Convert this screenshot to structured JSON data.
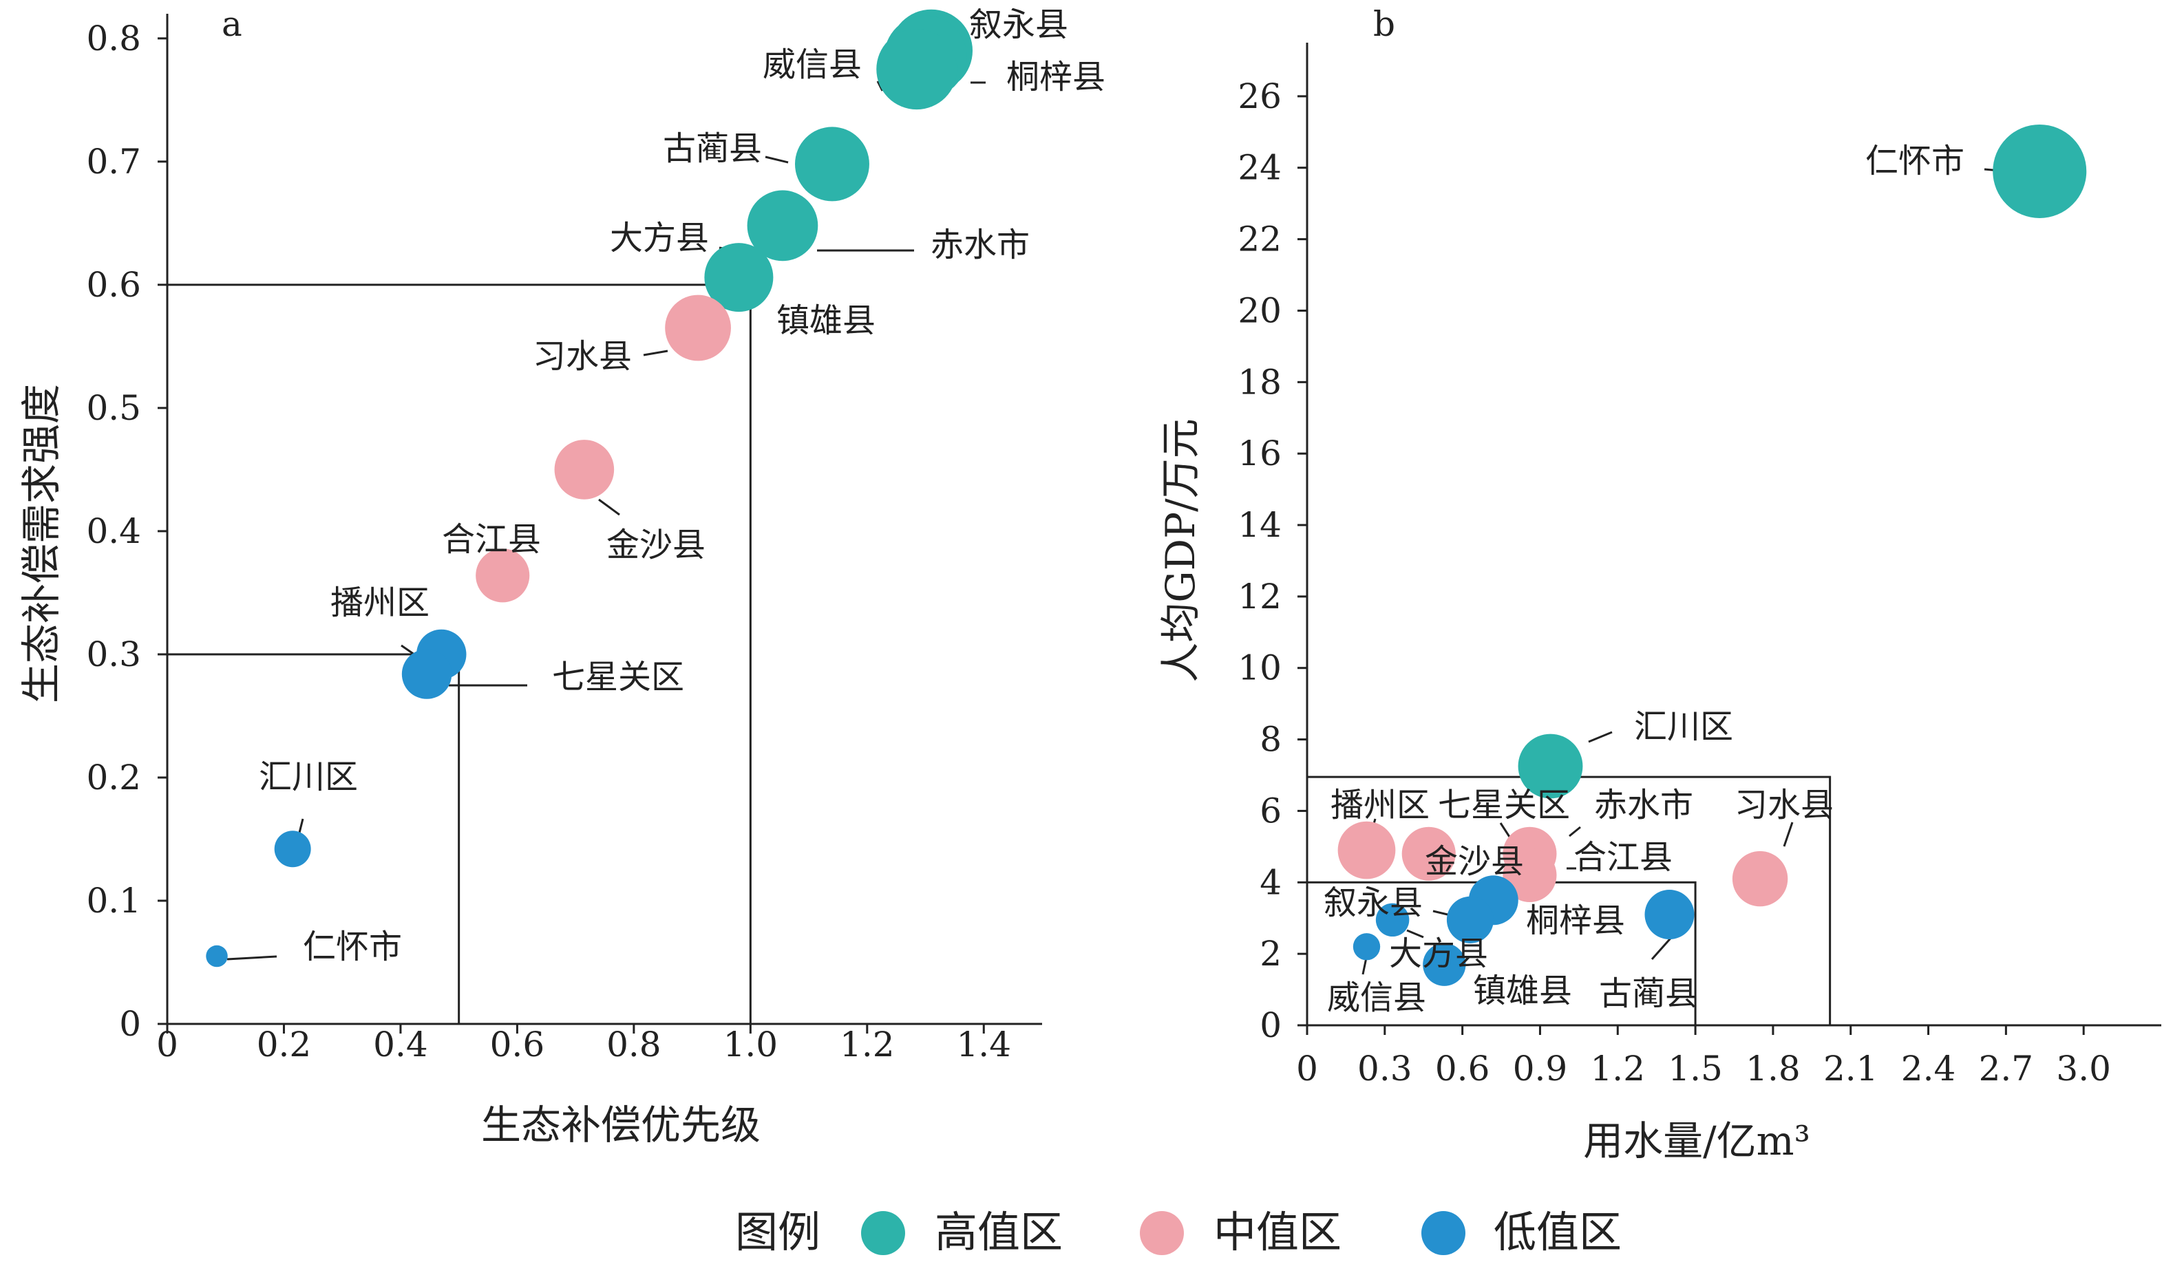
{
  "chart_data": [
    {
      "panel": "a",
      "type": "scatter",
      "xlabel": "生态补偿优先级",
      "ylabel": "生态补偿需求强度",
      "xlim": [
        0,
        1.5
      ],
      "ylim": [
        0,
        0.82
      ],
      "x_ticks": [
        "0",
        "0.2",
        "0.4",
        "0.6",
        "0.8",
        "1.0",
        "1.2",
        "1.4"
      ],
      "y_ticks": [
        "0",
        "0.1",
        "0.2",
        "0.3",
        "0.4",
        "0.5",
        "0.6",
        "0.7",
        "0.8"
      ],
      "boxes": [
        {
          "x": [
            0,
            0.5
          ],
          "y": [
            0,
            0.3
          ]
        },
        {
          "x": [
            0,
            1.0
          ],
          "y": [
            0,
            0.6
          ]
        }
      ],
      "points": [
        {
          "label": "叙永县",
          "x": 1.31,
          "y": 0.79,
          "group": "high",
          "size": 1.0
        },
        {
          "label": "桐梓县",
          "x": 1.3,
          "y": 0.785,
          "group": "high",
          "size": 1.0
        },
        {
          "label": "威信县",
          "x": 1.285,
          "y": 0.775,
          "group": "high",
          "size": 0.95
        },
        {
          "label": "古蔺县",
          "x": 1.14,
          "y": 0.698,
          "group": "high",
          "size": 0.8
        },
        {
          "label": "大方县",
          "x": 1.055,
          "y": 0.648,
          "group": "high",
          "size": 0.72
        },
        {
          "label": "赤水市",
          "x": 1.06,
          "y": 0.648,
          "group": "high",
          "size": 0.0
        },
        {
          "label": "镇雄县",
          "x": 0.98,
          "y": 0.606,
          "group": "high",
          "size": 0.68
        },
        {
          "label": "习水县",
          "x": 0.91,
          "y": 0.565,
          "group": "mid",
          "size": 0.62
        },
        {
          "label": "金沙县",
          "x": 0.715,
          "y": 0.45,
          "group": "mid",
          "size": 0.5
        },
        {
          "label": "合江县",
          "x": 0.575,
          "y": 0.364,
          "group": "mid",
          "size": 0.4
        },
        {
          "label": "播州区",
          "x": 0.47,
          "y": 0.3,
          "group": "low",
          "size": 0.34
        },
        {
          "label": "七星关区",
          "x": 0.445,
          "y": 0.284,
          "group": "low",
          "size": 0.34
        },
        {
          "label": "汇川区",
          "x": 0.215,
          "y": 0.142,
          "group": "low",
          "size": 0.17
        },
        {
          "label": "仁怀市",
          "x": 0.085,
          "y": 0.055,
          "group": "low",
          "size": 0.05
        }
      ]
    },
    {
      "panel": "b",
      "type": "scatter",
      "xlabel": "用水量/亿m³",
      "ylabel": "人均GDP/万元",
      "xlim": [
        0,
        3.3
      ],
      "ylim": [
        0,
        27.5
      ],
      "x_ticks": [
        "0",
        "0.3",
        "0.6",
        "0.9",
        "1.2",
        "1.5",
        "1.8",
        "2.1",
        "2.4",
        "2.7",
        "3.0"
      ],
      "y_ticks": [
        "0",
        "2",
        "4",
        "6",
        "8",
        "10",
        "12",
        "14",
        "16",
        "18",
        "20",
        "22",
        "24",
        "26"
      ],
      "boxes": [
        {
          "x": [
            0,
            1.5
          ],
          "y": [
            0,
            4.0
          ]
        },
        {
          "x": [
            0,
            2.02
          ],
          "y": [
            0,
            6.95
          ]
        }
      ],
      "points": [
        {
          "label": "仁怀市",
          "x": 2.83,
          "y": 23.9,
          "group": "high",
          "size": 1.0
        },
        {
          "label": "汇川区",
          "x": 0.94,
          "y": 7.25,
          "group": "high",
          "size": 0.45
        },
        {
          "label": "播州区",
          "x": 0.23,
          "y": 4.9,
          "group": "mid",
          "size": 0.35
        },
        {
          "label": "七星关区",
          "x": 0.47,
          "y": 4.8,
          "group": "mid",
          "size": 0.3
        },
        {
          "label": "赤水市",
          "x": 0.86,
          "y": 4.8,
          "group": "mid",
          "size": 0.3
        },
        {
          "label": "金沙县",
          "x": 0.48,
          "y": 4.7,
          "group": "mid",
          "size": 0.0
        },
        {
          "label": "合江县",
          "x": 0.86,
          "y": 4.2,
          "group": "mid",
          "size": 0.3
        },
        {
          "label": "习水县",
          "x": 1.75,
          "y": 4.1,
          "group": "mid",
          "size": 0.32
        },
        {
          "label": "桐梓县",
          "x": 0.72,
          "y": 3.5,
          "group": "low",
          "size": 0.25
        },
        {
          "label": "叙永县",
          "x": 0.63,
          "y": 2.95,
          "group": "low",
          "size": 0.22
        },
        {
          "label": "古蔺县",
          "x": 1.4,
          "y": 3.1,
          "group": "low",
          "size": 0.25
        },
        {
          "label": "大方县",
          "x": 0.33,
          "y": 2.95,
          "group": "low",
          "size": 0.1
        },
        {
          "label": "镇雄县",
          "x": 0.53,
          "y": 1.7,
          "group": "low",
          "size": 0.18
        },
        {
          "label": "威信县",
          "x": 0.23,
          "y": 2.2,
          "group": "low",
          "size": 0.06
        }
      ]
    }
  ],
  "legend": {
    "title": "图例",
    "items": [
      {
        "key": "high",
        "label": "高值区",
        "color": "#2db3aa"
      },
      {
        "key": "mid",
        "label": "中值区",
        "color": "#f0a3ab"
      },
      {
        "key": "low",
        "label": "低值区",
        "color": "#2590cf"
      }
    ]
  }
}
